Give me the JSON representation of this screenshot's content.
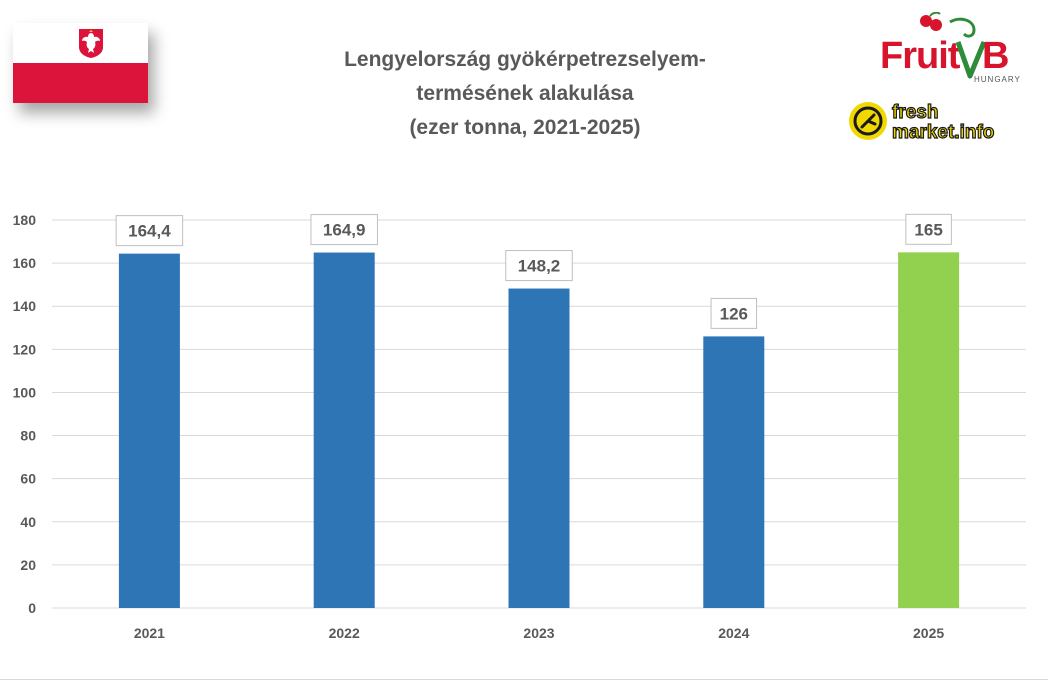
{
  "header": {
    "title_lines": [
      "Lengyelország gyökérpetrezselyem-",
      "termésének alakulása",
      "(ezer tonna, 2021-2025)"
    ]
  },
  "logos": {
    "fruitveb": {
      "text": "FruitVeB",
      "sub": "HUNGARY"
    },
    "freshmarket": {
      "text_top": "fresh",
      "text_bottom": "market.info"
    }
  },
  "colors": {
    "bar_default": "#2e75b6",
    "bar_highlight": "#92d050",
    "grid": "#d9d9d9",
    "text": "#595959",
    "flag_red": "#dc143c"
  },
  "chart_data": {
    "type": "bar",
    "title": "Lengyelország gyökérpetrezselyem-termésének alakulása (ezer tonna, 2021-2025)",
    "categories": [
      "2021",
      "2022",
      "2023",
      "2024",
      "2025"
    ],
    "values": [
      164.4,
      164.9,
      148.2,
      126,
      165
    ],
    "value_labels": [
      "164,4",
      "164,9",
      "148,2",
      "126",
      "165"
    ],
    "highlight_index": 4,
    "ylim": [
      0,
      180
    ],
    "yticks": [
      0,
      20,
      40,
      60,
      80,
      100,
      120,
      140,
      160,
      180
    ],
    "grid": true,
    "xlabel": "",
    "ylabel": ""
  }
}
